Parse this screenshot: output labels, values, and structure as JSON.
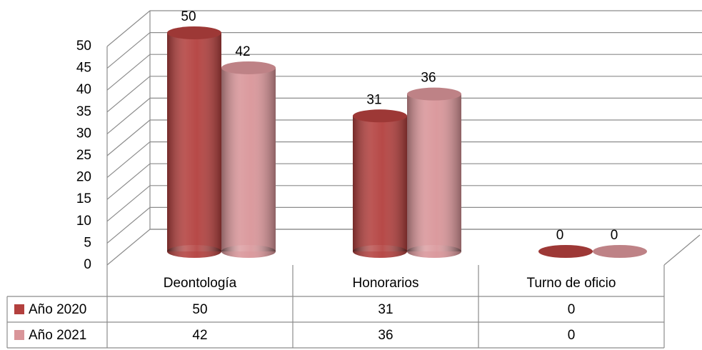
{
  "chart_data": {
    "type": "bar",
    "categories": [
      "Deontología",
      "Honorarios",
      "Turno de oficio"
    ],
    "series": [
      {
        "name": "Año 2020",
        "color": "#b3403e",
        "values": [
          50,
          31,
          0
        ]
      },
      {
        "name": "Año 2021",
        "color": "#d99599",
        "values": [
          42,
          36,
          0
        ]
      }
    ],
    "ylim": [
      0,
      50
    ],
    "yticks": [
      0,
      5,
      10,
      15,
      20,
      25,
      30,
      35,
      40,
      45,
      50
    ],
    "grid": true,
    "data_table": true
  }
}
